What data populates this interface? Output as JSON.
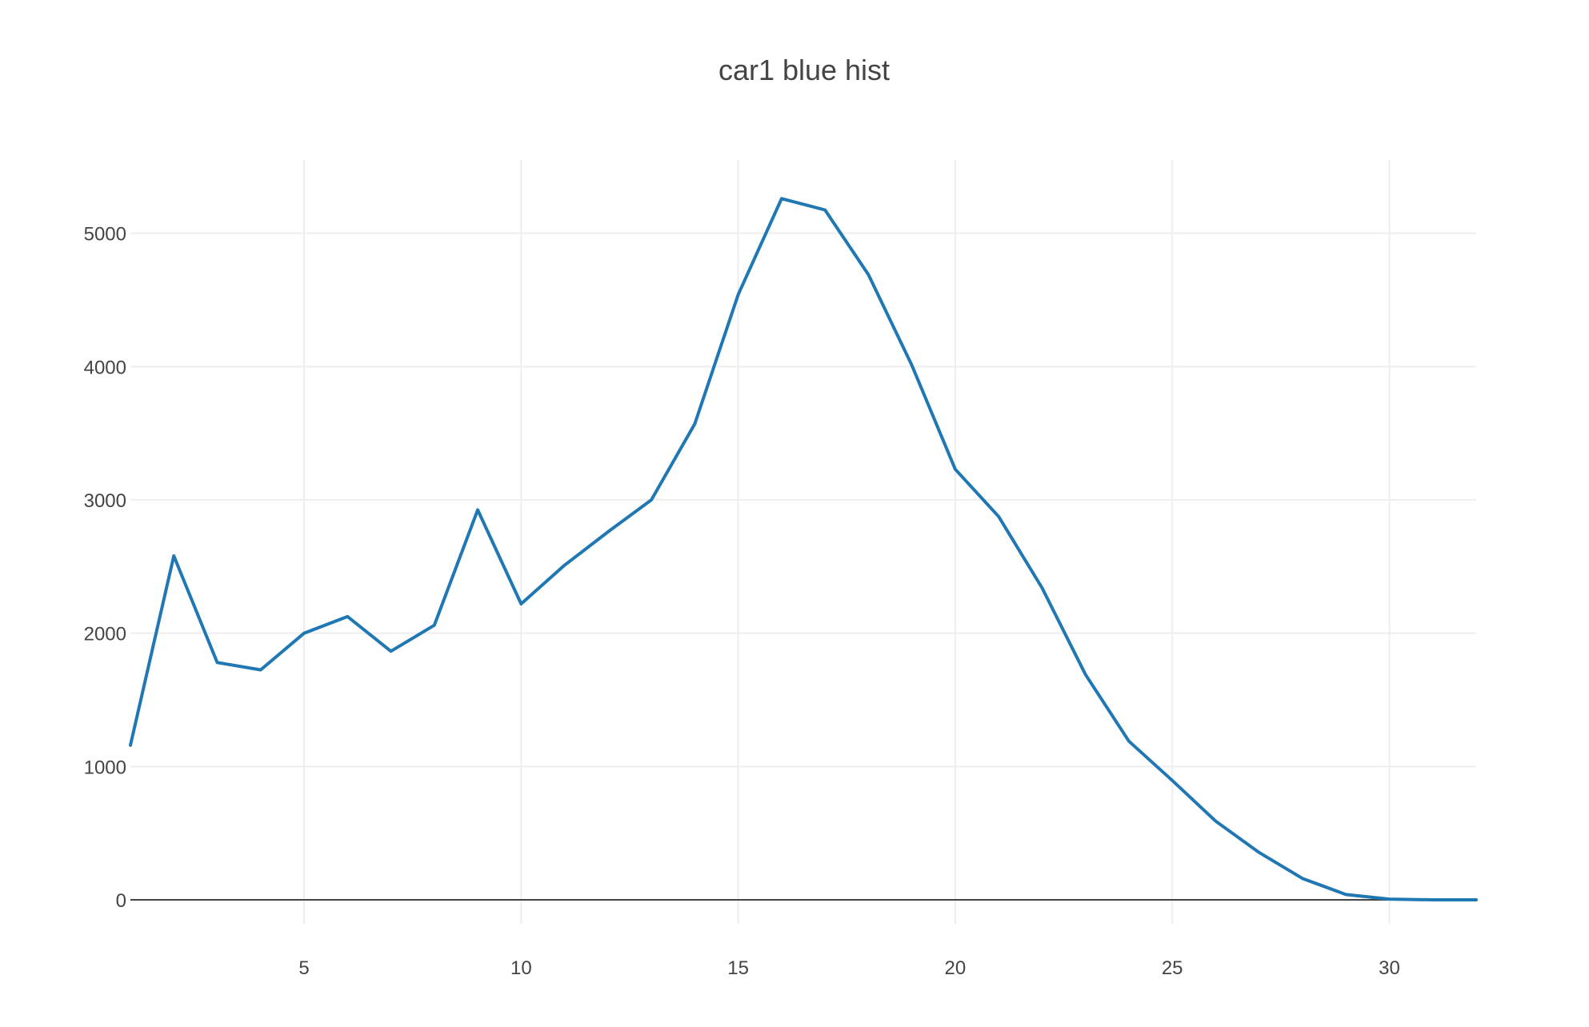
{
  "chart_data": {
    "type": "line",
    "title": "car1 blue hist",
    "xlabel": "",
    "ylabel": "",
    "xlim": [
      1,
      32
    ],
    "ylim": [
      -180,
      5550
    ],
    "xticks": [
      5,
      10,
      15,
      20,
      25,
      30
    ],
    "yticks": [
      0,
      1000,
      2000,
      3000,
      4000,
      5000
    ],
    "grid": true,
    "legend": "none",
    "series": [
      {
        "color": "#1f77b4",
        "x": [
          1,
          2,
          3,
          4,
          5,
          6,
          7,
          8,
          9,
          10,
          11,
          12,
          13,
          14,
          15,
          16,
          17,
          18,
          19,
          20,
          21,
          22,
          23,
          24,
          25,
          26,
          27,
          28,
          29,
          30,
          31,
          32
        ],
        "values": [
          1160,
          2580,
          1780,
          1725,
          2000,
          2125,
          1865,
          2060,
          2925,
          2220,
          2510,
          2760,
          3000,
          3570,
          4540,
          5260,
          5175,
          4690,
          4010,
          3230,
          2875,
          2340,
          1690,
          1190,
          895,
          590,
          355,
          160,
          40,
          5,
          0,
          0
        ]
      }
    ]
  }
}
